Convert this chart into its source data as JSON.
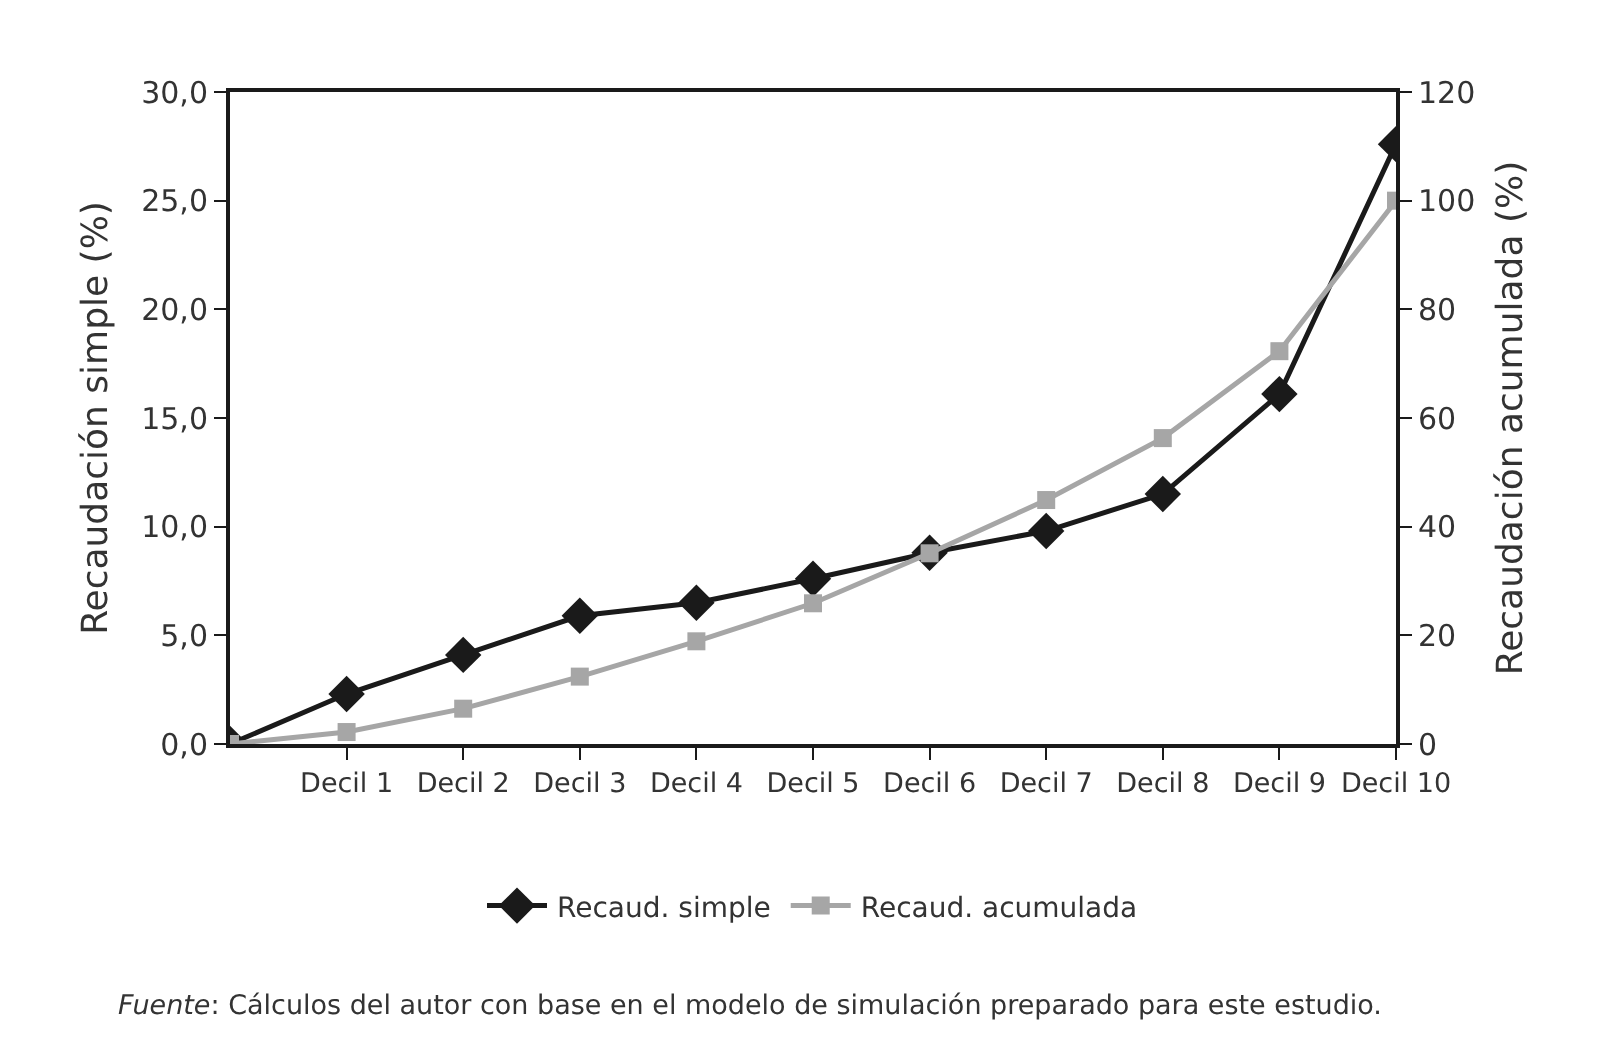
{
  "chart_data": {
    "type": "line",
    "xlabel": null,
    "ylabel": "Recaudación simple (%)",
    "y2label": "Recaudación acumulada (%)",
    "categories": [
      null,
      "Decil 1",
      "Decil 2",
      "Decil 3",
      "Decil 4",
      "Decil 5",
      "Decil 6",
      "Decil 7",
      "Decil 8",
      "Decil 9",
      "Decil 10"
    ],
    "series": [
      {
        "name": "Recaud. simple",
        "color": "#1a1a1a",
        "marker": "diamond",
        "values": [
          0,
          2.3,
          4.1,
          5.9,
          6.5,
          7.6,
          8.8,
          9.8,
          11.5,
          16.1,
          27.6
        ]
      },
      {
        "name": "Recaud. acumulada",
        "color": "#a6a6a6",
        "marker": "square",
        "axis": "y2",
        "values": [
          0,
          2.2,
          6.5,
          12.4,
          18.9,
          25.9,
          35.1,
          44.9,
          56.3,
          72.3,
          100
        ]
      }
    ],
    "ylim": [
      0,
      30
    ],
    "yticks": [
      {
        "value": 0,
        "label": "0,0"
      },
      {
        "value": 5,
        "label": "5,0"
      },
      {
        "value": 10,
        "label": "10,0"
      },
      {
        "value": 15,
        "label": "15,0"
      },
      {
        "value": 20,
        "label": "20,0"
      },
      {
        "value": 25,
        "label": "25,0"
      },
      {
        "value": 30,
        "label": "30,0"
      }
    ],
    "y2lim": [
      0,
      120
    ],
    "y2ticks": [
      0,
      20,
      40,
      60,
      80,
      100,
      120
    ],
    "grid": false,
    "legend": "bottom",
    "line_style": "solid",
    "annotations": [
      "Fuente: Cálculos del autor con base en el modelo de simulación preparado para este estudio."
    ]
  }
}
